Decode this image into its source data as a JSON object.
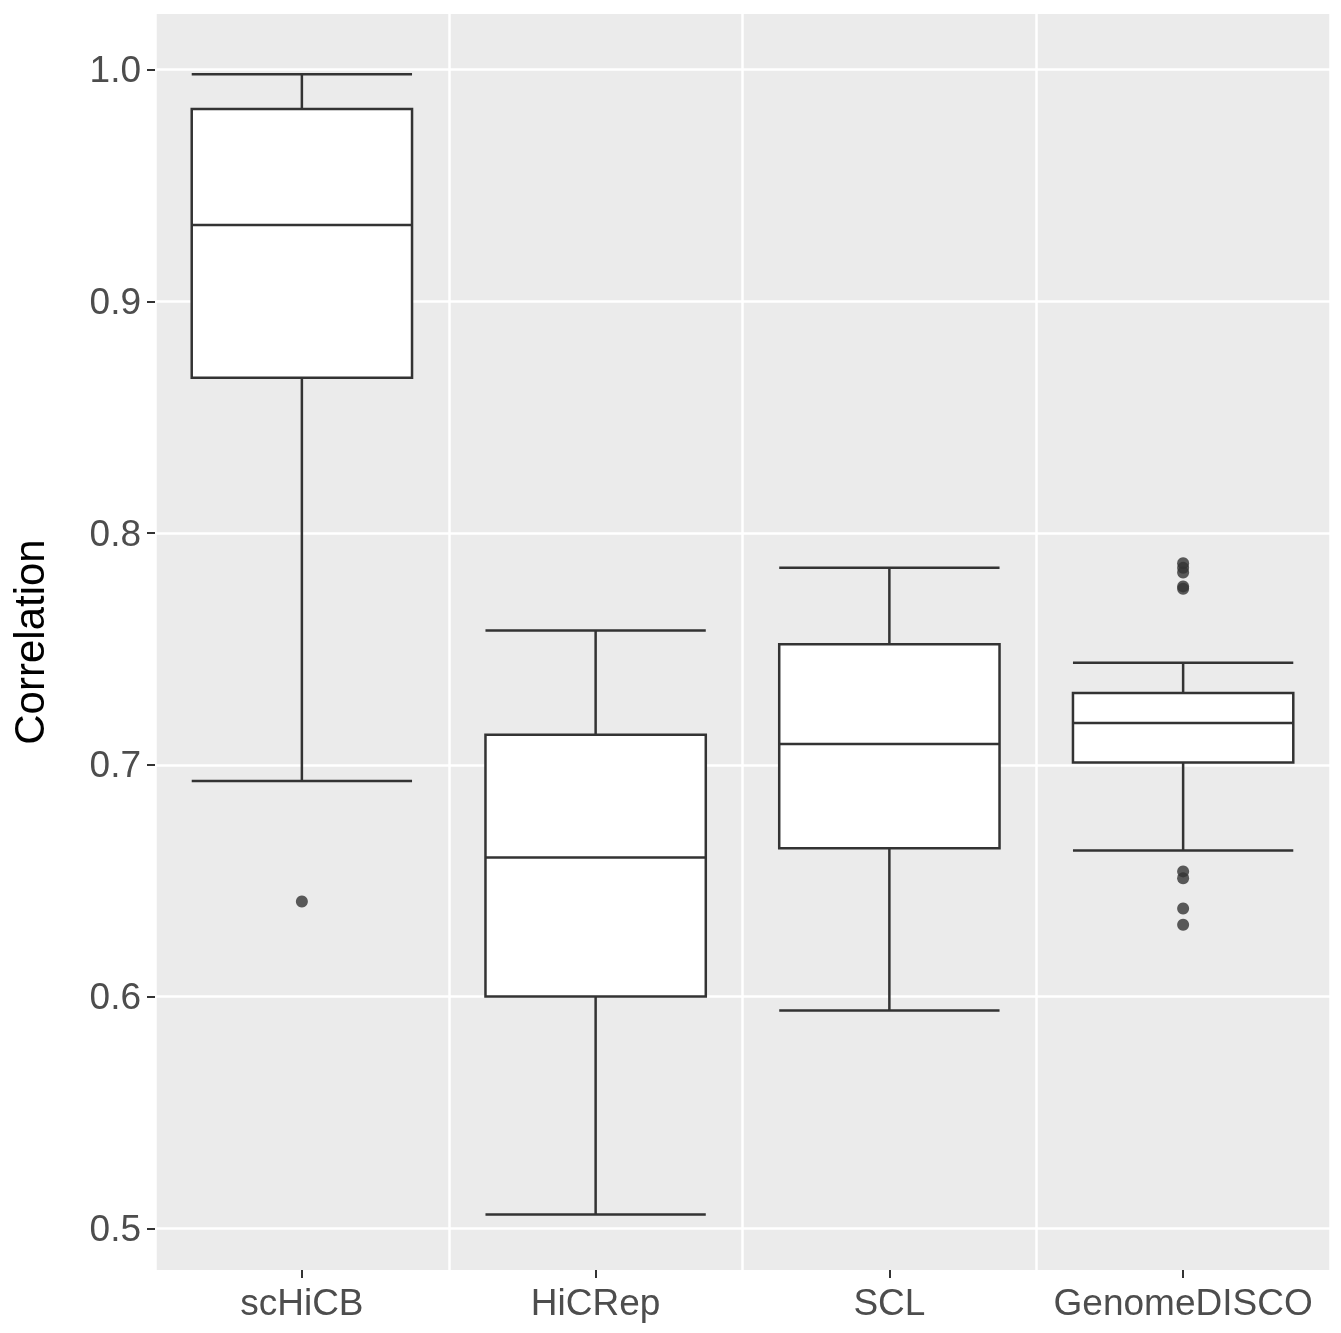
{
  "chart_data": {
    "type": "box",
    "ylabel": "Correlation",
    "categories": [
      "scHiCB",
      "HiCRep",
      "SCL",
      "GenomeDISCO"
    ],
    "boxes": [
      {
        "low": 0.693,
        "q1": 0.867,
        "median": 0.933,
        "q3": 0.983,
        "high": 0.998,
        "outliers": [
          0.641
        ]
      },
      {
        "low": 0.506,
        "q1": 0.6,
        "median": 0.66,
        "q3": 0.713,
        "high": 0.758
      },
      {
        "low": 0.594,
        "q1": 0.664,
        "median": 0.709,
        "q3": 0.752,
        "high": 0.785
      },
      {
        "low": 0.663,
        "q1": 0.701,
        "median": 0.718,
        "q3": 0.731,
        "high": 0.744,
        "outliers": [
          0.787,
          0.785,
          0.783,
          0.777,
          0.776,
          0.654,
          0.651,
          0.638,
          0.631
        ]
      }
    ],
    "ylim": [
      0.482,
      1.024
    ],
    "yticks": [
      0.5,
      0.6,
      0.7,
      0.8,
      0.9,
      {
        "value": 1,
        "label": "1.0"
      }
    ],
    "grid": true
  }
}
